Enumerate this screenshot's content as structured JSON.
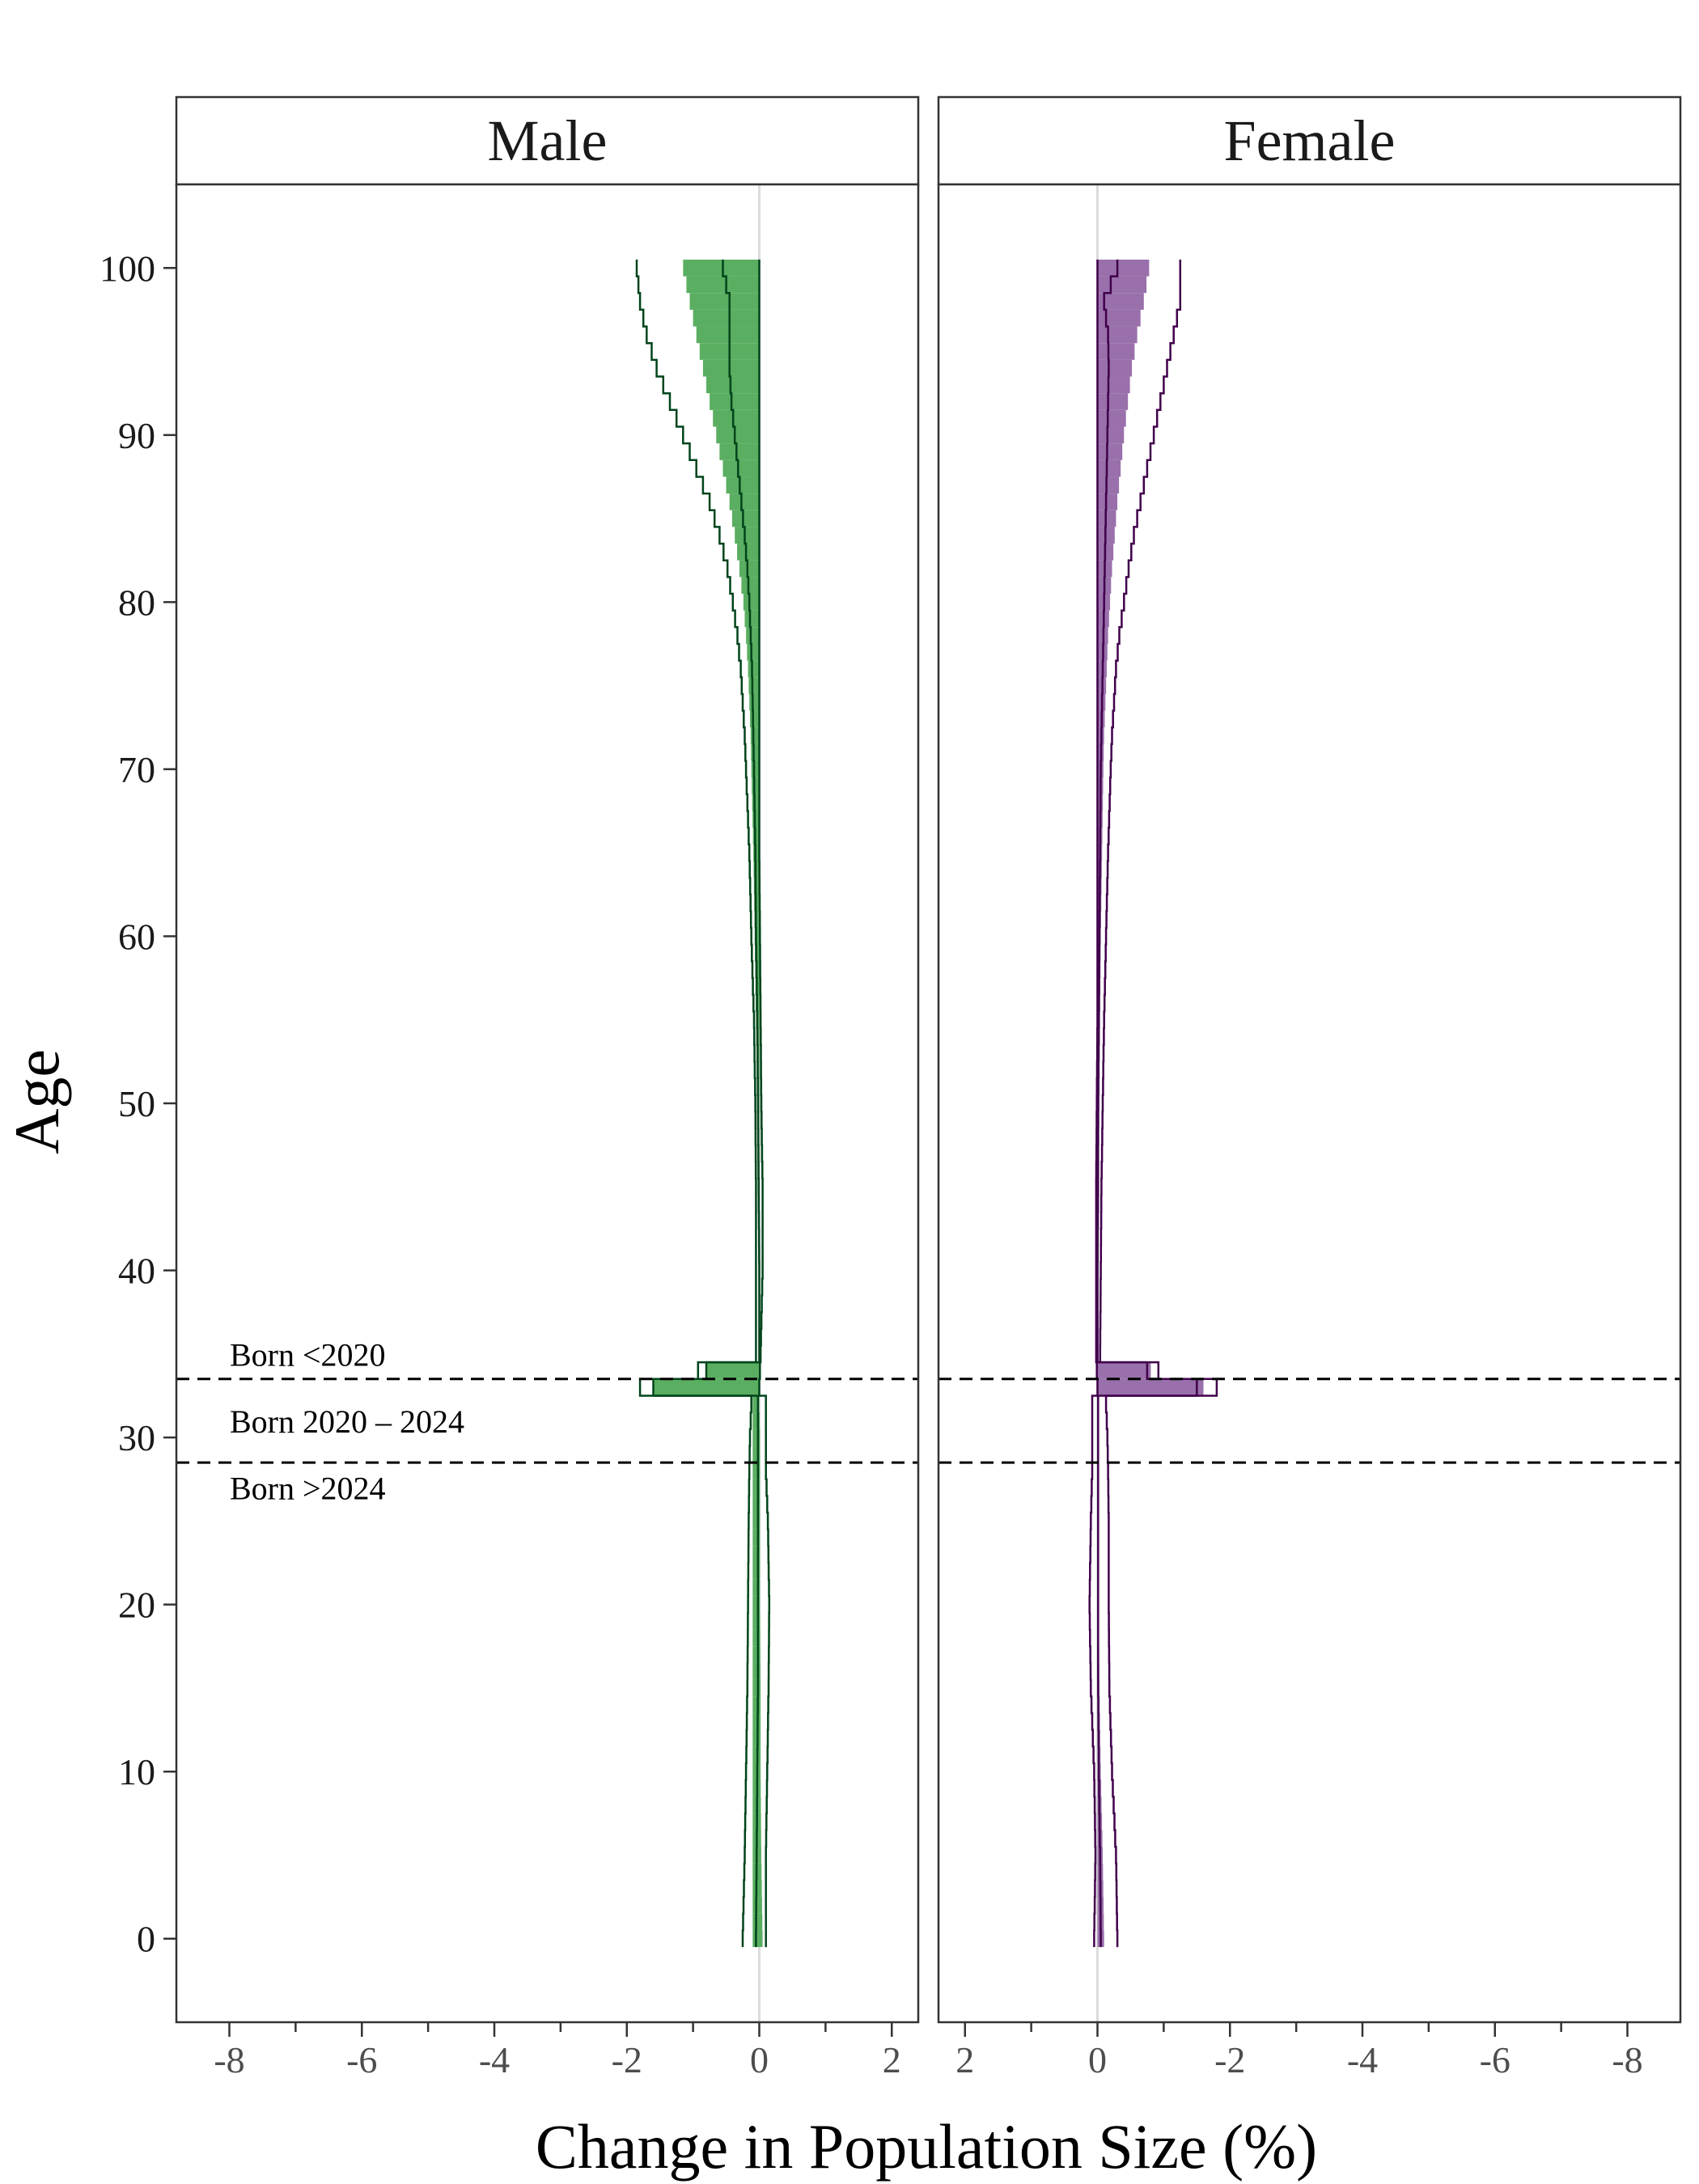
{
  "chart_data": {
    "type": "area",
    "ylabel": "Age",
    "xlabel": "Change in Population Size (%)",
    "ylim": [
      -5,
      105
    ],
    "yticks": [
      0,
      10,
      20,
      30,
      40,
      50,
      60,
      70,
      80,
      90,
      100
    ],
    "ytick_labels": [
      "0",
      "10",
      "20",
      "30",
      "40",
      "50",
      "60",
      "70",
      "80",
      "90",
      "100"
    ],
    "cohort_cutoffs": [
      33.5,
      28.5
    ],
    "annotations": [
      {
        "text": "Born <2020",
        "age": 34.3
      },
      {
        "text": "Born 2020 – 2024",
        "age": 30.3
      },
      {
        "text": "Born >2024",
        "age": 26.3
      }
    ],
    "panels": [
      {
        "strip": "Male",
        "color": "#5aae61",
        "line_color": "#00441b",
        "xlim": [
          -8.8,
          2.4
        ],
        "xticks": [
          -8,
          -6,
          -4,
          -2,
          0,
          2
        ],
        "xtick_labels": [
          "-8",
          "-6",
          "-4",
          "-2",
          "0",
          "2"
        ],
        "series": {
          "ages": [
            0,
            5,
            10,
            15,
            20,
            25,
            28,
            30,
            32,
            33,
            35,
            40,
            45,
            50,
            55,
            60,
            65,
            70,
            72,
            74,
            76,
            78,
            80,
            82,
            84,
            86,
            88,
            90,
            92,
            94,
            96,
            98,
            100
          ],
          "fill_lower": [
            -0.1,
            -0.1,
            -0.1,
            -0.1,
            -0.1,
            -0.1,
            -0.1,
            -0.1,
            -0.1,
            -1.6,
            -0.01,
            -0.01,
            -0.02,
            -0.03,
            -0.05,
            -0.07,
            -0.09,
            -0.12,
            -0.13,
            -0.15,
            -0.17,
            -0.2,
            -0.24,
            -0.3,
            -0.37,
            -0.45,
            -0.55,
            -0.65,
            -0.75,
            -0.85,
            -0.95,
            -1.05,
            -1.15
          ],
          "fill_upper": [
            0.05,
            0.03,
            0.02,
            0.02,
            0.01,
            0.01,
            0.01,
            0.01,
            0.0,
            0.0,
            0.0,
            0.0,
            0.0,
            0.0,
            0.0,
            0.0,
            0.0,
            0.0,
            0.0,
            0.0,
            0.0,
            0.0,
            0.0,
            0.0,
            0.0,
            0.0,
            0.0,
            0.0,
            0.0,
            0.0,
            0.0,
            0.0,
            0.0
          ],
          "median": [
            -0.05,
            -0.04,
            -0.03,
            -0.02,
            -0.02,
            -0.02,
            -0.02,
            -0.02,
            -0.02,
            -1.6,
            0.0,
            0.0,
            -0.01,
            -0.02,
            -0.03,
            -0.05,
            -0.06,
            -0.08,
            -0.09,
            -0.1,
            -0.11,
            -0.13,
            -0.15,
            -0.18,
            -0.22,
            -0.27,
            -0.32,
            -0.37,
            -0.42,
            -0.45,
            -0.45,
            -0.45,
            -0.55
          ],
          "outer_lower": [
            -0.25,
            -0.22,
            -0.2,
            -0.18,
            -0.17,
            -0.16,
            -0.15,
            -0.14,
            -0.12,
            -1.8,
            -0.05,
            -0.05,
            -0.05,
            -0.06,
            -0.08,
            -0.12,
            -0.15,
            -0.2,
            -0.22,
            -0.25,
            -0.28,
            -0.33,
            -0.4,
            -0.48,
            -0.6,
            -0.75,
            -0.95,
            -1.15,
            -1.35,
            -1.55,
            -1.7,
            -1.8,
            -1.85
          ],
          "outer_upper": [
            0.1,
            0.1,
            0.12,
            0.14,
            0.15,
            0.13,
            0.1,
            0.1,
            0.1,
            0.0,
            0.02,
            0.05,
            0.05,
            0.03,
            0.02,
            0.01,
            0.0,
            0.0,
            0.0,
            0.0,
            0.0,
            0.0,
            0.0,
            0.0,
            0.0,
            0.0,
            0.0,
            0.0,
            0.0,
            0.0,
            0.0,
            0.0,
            0.0
          ]
        }
      },
      {
        "strip": "Female",
        "color": "#9970ab",
        "line_color": "#40004b",
        "xlim": [
          2.4,
          -8.8
        ],
        "xticks": [
          2,
          0,
          -2,
          -4,
          -6,
          -8
        ],
        "xtick_labels": [
          "2",
          "0",
          "-2",
          "-4",
          "-6",
          "-8"
        ],
        "series": {
          "ages": [
            0,
            5,
            10,
            15,
            20,
            25,
            28,
            30,
            32,
            33,
            35,
            40,
            45,
            50,
            55,
            60,
            65,
            70,
            72,
            74,
            76,
            78,
            80,
            82,
            84,
            86,
            88,
            90,
            92,
            94,
            96,
            98,
            100
          ],
          "fill_lower": [
            -0.1,
            -0.08,
            -0.05,
            -0.03,
            -0.02,
            -0.02,
            -0.02,
            -0.02,
            -0.02,
            -1.6,
            -0.01,
            -0.01,
            -0.02,
            -0.03,
            -0.04,
            -0.05,
            -0.07,
            -0.09,
            -0.1,
            -0.12,
            -0.14,
            -0.16,
            -0.19,
            -0.22,
            -0.26,
            -0.3,
            -0.35,
            -0.4,
            -0.46,
            -0.52,
            -0.6,
            -0.7,
            -0.78
          ],
          "fill_upper": [
            0.0,
            0.0,
            0.0,
            0.0,
            0.0,
            0.0,
            0.0,
            0.0,
            0.0,
            0.0,
            0.0,
            0.0,
            0.0,
            0.0,
            0.0,
            0.0,
            0.0,
            0.0,
            0.0,
            0.0,
            0.0,
            0.0,
            0.0,
            0.0,
            0.0,
            0.0,
            0.0,
            0.0,
            0.0,
            0.0,
            0.0,
            0.0,
            0.0
          ],
          "median": [
            -0.05,
            -0.04,
            -0.02,
            -0.01,
            -0.01,
            -0.01,
            -0.01,
            -0.01,
            -0.01,
            -1.5,
            0.0,
            0.0,
            -0.01,
            -0.01,
            -0.02,
            -0.03,
            -0.04,
            -0.05,
            -0.06,
            -0.07,
            -0.08,
            -0.09,
            -0.1,
            -0.11,
            -0.12,
            -0.13,
            -0.14,
            -0.15,
            -0.16,
            -0.17,
            -0.16,
            -0.1,
            -0.3
          ],
          "outer_lower": [
            -0.3,
            -0.28,
            -0.22,
            -0.18,
            -0.17,
            -0.17,
            -0.16,
            -0.15,
            -0.13,
            -1.8,
            -0.04,
            -0.05,
            -0.06,
            -0.08,
            -0.1,
            -0.13,
            -0.16,
            -0.2,
            -0.22,
            -0.25,
            -0.28,
            -0.33,
            -0.4,
            -0.47,
            -0.55,
            -0.65,
            -0.75,
            -0.85,
            -0.95,
            -1.05,
            -1.15,
            -1.25,
            -1.25
          ],
          "outer_upper": [
            0.05,
            0.03,
            0.05,
            0.1,
            0.12,
            0.1,
            0.08,
            0.08,
            0.08,
            0.0,
            0.02,
            0.02,
            0.02,
            0.01,
            0.0,
            0.0,
            0.0,
            0.0,
            0.0,
            0.0,
            0.0,
            0.0,
            0.0,
            0.0,
            0.0,
            0.0,
            0.0,
            0.0,
            0.0,
            0.0,
            0.0,
            0.0,
            0.0
          ]
        }
      }
    ]
  }
}
